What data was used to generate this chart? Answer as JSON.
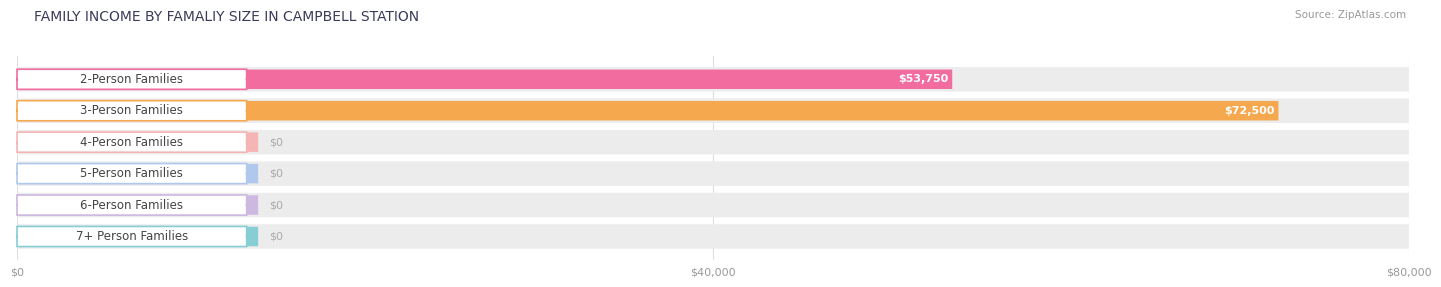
{
  "title": "FAMILY INCOME BY FAMALIY SIZE IN CAMPBELL STATION",
  "source": "Source: ZipAtlas.com",
  "categories": [
    "2-Person Families",
    "3-Person Families",
    "4-Person Families",
    "5-Person Families",
    "6-Person Families",
    "7+ Person Families"
  ],
  "values": [
    53750,
    72500,
    0,
    0,
    0,
    0
  ],
  "bar_colors": [
    "#f26ca0",
    "#f5a84e",
    "#f5b5b5",
    "#b0c8ee",
    "#ccb8e0",
    "#86cdd4"
  ],
  "value_labels": [
    "$53,750",
    "$72,500",
    "$0",
    "$0",
    "$0",
    "$0"
  ],
  "xlim": [
    0,
    80000
  ],
  "xticks": [
    0,
    40000,
    80000
  ],
  "xtick_labels": [
    "$0",
    "$40,000",
    "$80,000"
  ],
  "background_color": "#ffffff",
  "track_color": "#ececec",
  "title_fontsize": 10,
  "label_fontsize": 8.5,
  "value_fontsize": 8
}
